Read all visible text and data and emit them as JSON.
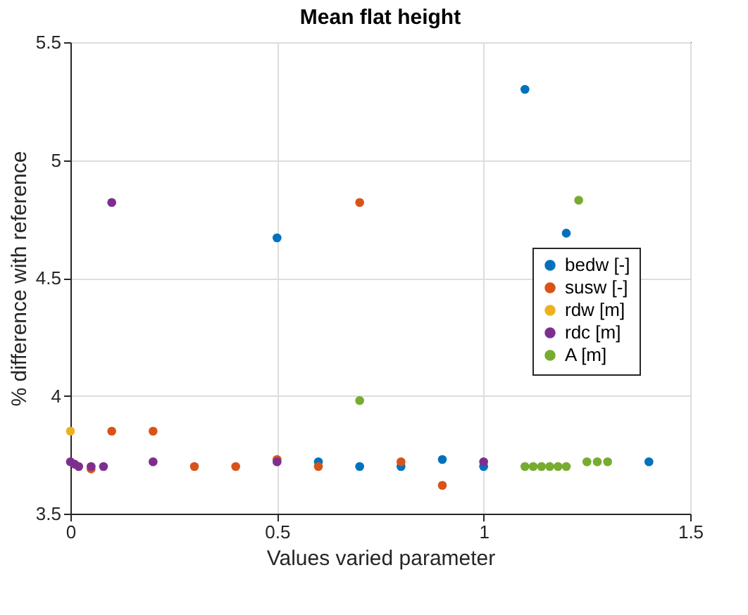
{
  "chart_data": {
    "type": "scatter",
    "title": "Mean flat height",
    "xlabel": "Values varied parameter",
    "ylabel": "% difference with reference",
    "xlim": [
      0,
      1.5
    ],
    "xticks": [
      0,
      0.5,
      1,
      1.5
    ],
    "ylim": [
      3.5,
      5.5
    ],
    "yticks": [
      3.5,
      4,
      4.5,
      5,
      5.5
    ],
    "grid": true,
    "legend": "right",
    "marker": "circle",
    "series": [
      {
        "name": "bedw [-]",
        "color": "#0072bd",
        "x": [
          0.5,
          0.6,
          0.7,
          0.8,
          0.9,
          1.0,
          1.1,
          1.2,
          1.4
        ],
        "values": [
          4.67,
          3.72,
          3.7,
          3.7,
          3.73,
          3.7,
          5.3,
          4.69,
          3.72
        ]
      },
      {
        "name": "susw [-]",
        "color": "#d95319",
        "x": [
          0.05,
          0.1,
          0.2,
          0.3,
          0.4,
          0.5,
          0.6,
          0.7,
          0.8,
          0.9
        ],
        "values": [
          3.69,
          3.85,
          3.85,
          3.7,
          3.7,
          3.73,
          3.7,
          4.82,
          3.72,
          3.62
        ]
      },
      {
        "name": "rdw [m]",
        "color": "#edb120",
        "x": [
          0
        ],
        "values": [
          3.85
        ]
      },
      {
        "name": "rdc [m]",
        "color": "#7e2f8e",
        "x": [
          0,
          0.01,
          0.02,
          0.05,
          0.08,
          0.1,
          0.2,
          0.5,
          1.0
        ],
        "values": [
          3.72,
          3.71,
          3.7,
          3.7,
          3.7,
          4.82,
          3.72,
          3.72,
          3.72
        ]
      },
      {
        "name": "A [m]",
        "color": "#77ac30",
        "x": [
          0.7,
          1.1,
          1.12,
          1.14,
          1.16,
          1.18,
          1.2,
          1.23,
          1.25,
          1.275,
          1.3
        ],
        "values": [
          3.98,
          3.7,
          3.7,
          3.7,
          3.7,
          3.7,
          3.7,
          4.83,
          3.72,
          3.72,
          3.72
        ]
      }
    ]
  }
}
